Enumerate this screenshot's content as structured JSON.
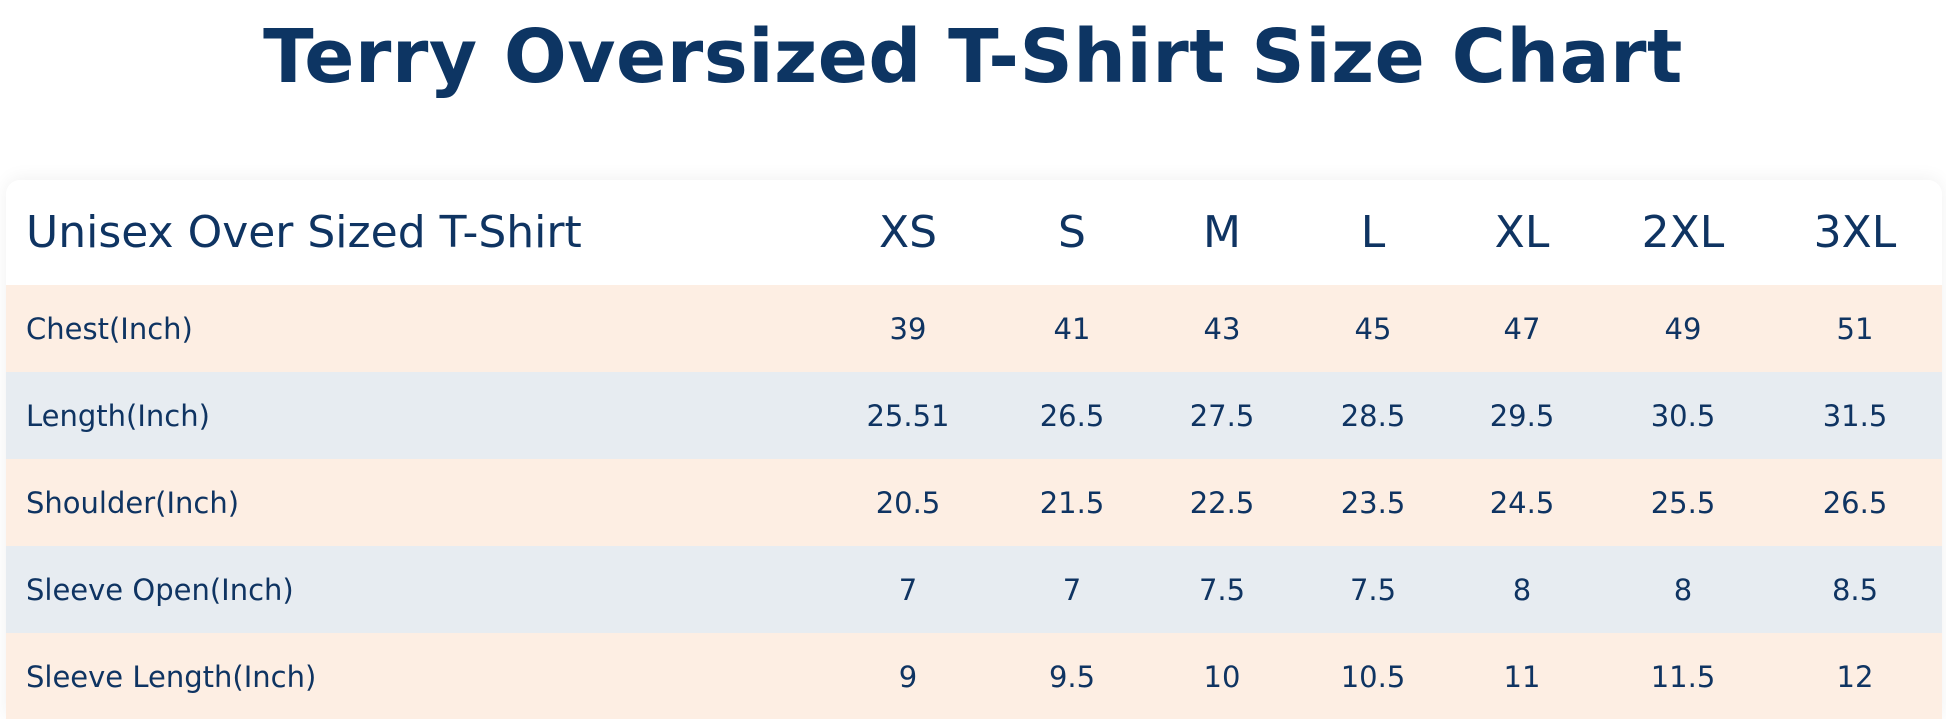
{
  "title": "Terry Oversized T-Shirt Size Chart",
  "table": {
    "header": [
      "Unisex Over Sized T-Shirt",
      "XS",
      "S",
      "M",
      "L",
      "XL",
      "2XL",
      "3XL"
    ],
    "rows": [
      [
        "Chest(Inch)",
        "39",
        "41",
        "43",
        "45",
        "47",
        "49",
        "51"
      ],
      [
        "Length(Inch)",
        "25.51",
        "26.5",
        "27.5",
        "28.5",
        "29.5",
        "30.5",
        "31.5"
      ],
      [
        "Shoulder(Inch)",
        "20.5",
        "21.5",
        "22.5",
        "23.5",
        "24.5",
        "25.5",
        "26.5"
      ],
      [
        "Sleeve Open(Inch)",
        "7",
        "7",
        "7.5",
        "7.5",
        "8",
        "8",
        "8.5"
      ],
      [
        "Sleeve Length(Inch)",
        "9",
        "9.5",
        "10",
        "10.5",
        "11",
        "11.5",
        "12"
      ]
    ]
  }
}
